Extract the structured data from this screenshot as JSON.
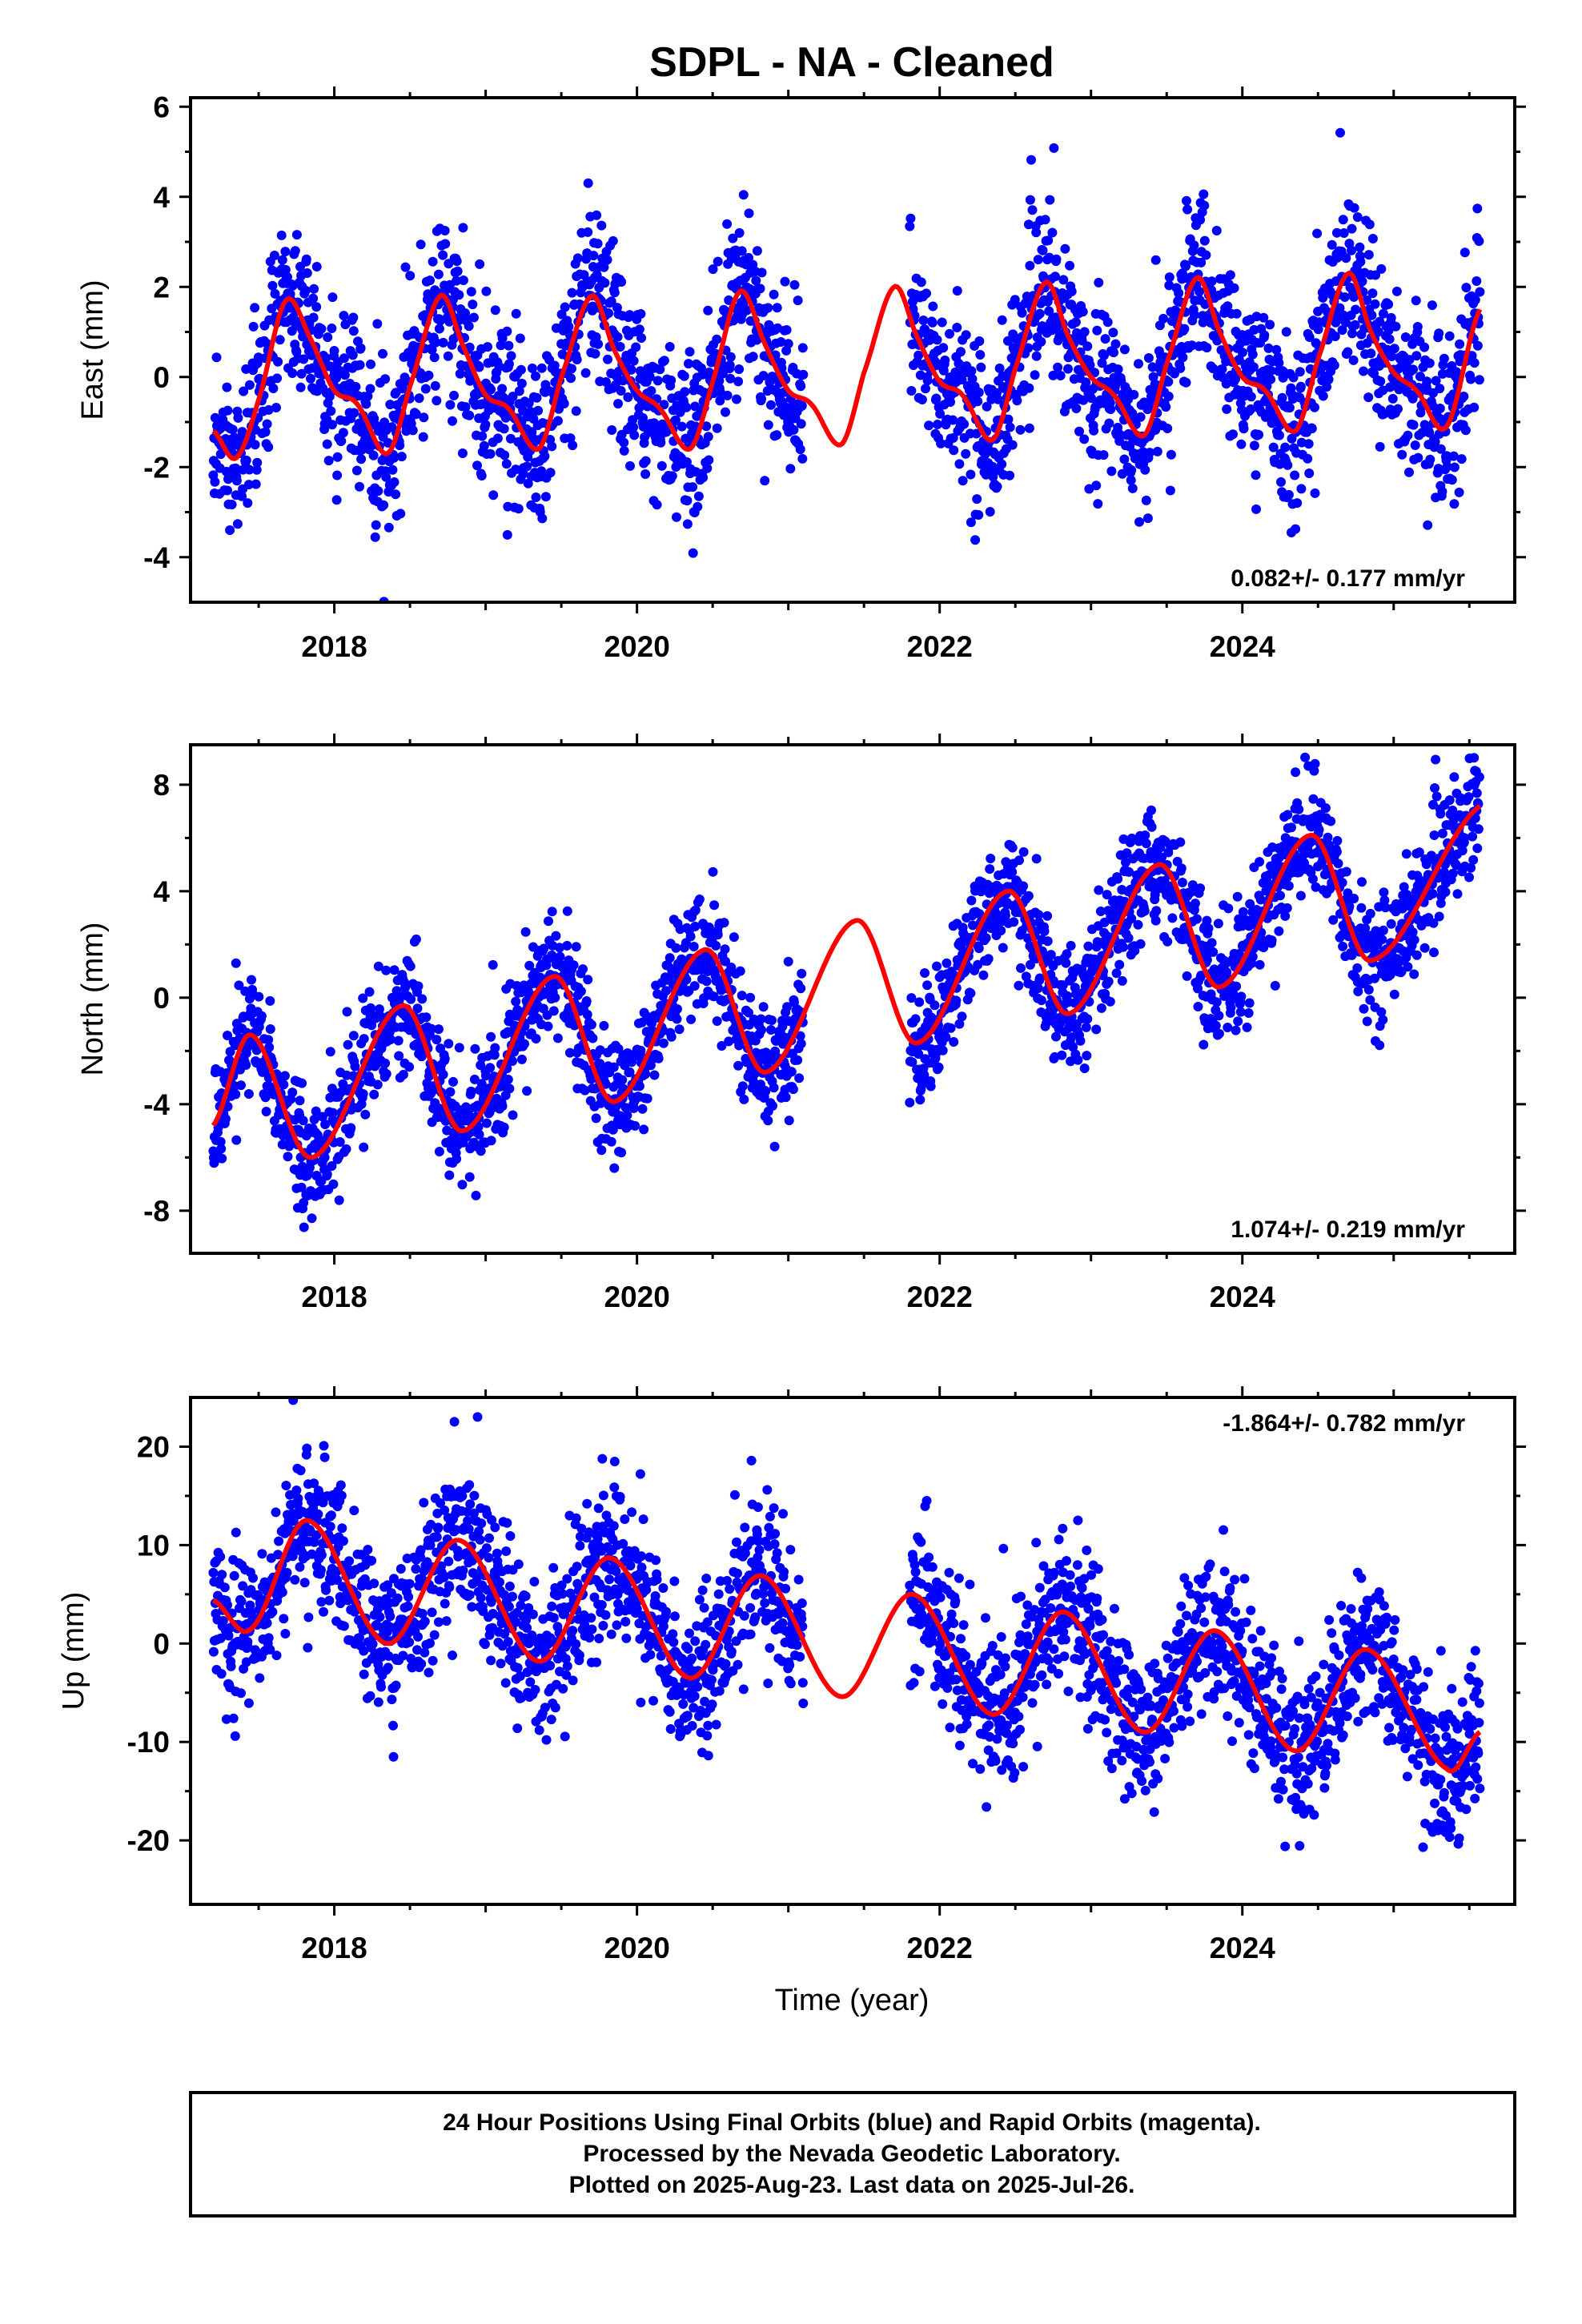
{
  "chart_data": {
    "title": "SDPL  - NA - Cleaned",
    "xlabel": "Time (year)",
    "x_ticks": [
      "2018",
      "2020",
      "2022",
      "2024"
    ],
    "x_range": [
      2017.05,
      2025.8
    ],
    "colors": {
      "points": "#0000ff",
      "fit": "#ff0000"
    },
    "fit_params": {
      "gap_start": 2021.1,
      "gap_end": 2021.8,
      "data_start": 2017.2,
      "data_end": 2025.57
    },
    "panels": [
      {
        "type": "scatter",
        "key": "east",
        "ylabel": "East (mm)",
        "ylim": [
          -5,
          6.2
        ],
        "y_ticks": [
          "6",
          "4",
          "2",
          "0",
          "-2",
          "-4"
        ],
        "y_tick_values": [
          6,
          4,
          2,
          0,
          -2,
          -4
        ],
        "rate_label": "0.082+/- 0.177 mm/yr",
        "rate_position": "bottom-right",
        "model": {
          "offset": 0.0,
          "rate": 0.082,
          "annual_amp": 1.3,
          "annual_peak": 0.7,
          "semi_amp": 0.55,
          "semi_peak": 0.7,
          "noise_sd": 0.9
        },
        "fit_knots": {
          "x": [
            2017.2,
            2017.35,
            2017.5,
            2017.68,
            2017.85,
            2018.0,
            2018.15,
            2018.35,
            2018.5,
            2018.7,
            2018.85,
            2019.0,
            2019.15,
            2019.35,
            2019.5,
            2019.7,
            2019.85,
            2020.0,
            2020.15,
            2020.35,
            2020.5,
            2020.68,
            2020.85,
            2021.0,
            2021.15,
            2021.35,
            2021.5,
            2021.7,
            2021.85,
            2022.0,
            2022.15,
            2022.35,
            2022.5,
            2022.7,
            2022.85,
            2023.0,
            2023.15,
            2023.35,
            2023.5,
            2023.7,
            2023.85,
            2024.0,
            2024.15,
            2024.35,
            2024.5,
            2024.7,
            2024.85,
            2025.0,
            2025.15,
            2025.35,
            2025.57
          ],
          "y": [
            -1.2,
            -1.8,
            -0.5,
            1.7,
            0.8,
            -0.3,
            -0.6,
            -1.7,
            -0.2,
            1.8,
            0.7,
            -0.4,
            -0.7,
            -1.6,
            0.0,
            1.8,
            0.6,
            -0.3,
            -0.7,
            -1.6,
            -0.1,
            1.9,
            0.7,
            -0.3,
            -0.6,
            -1.5,
            0.1,
            2.0,
            0.9,
            -0.1,
            -0.4,
            -1.4,
            0.2,
            2.1,
            0.9,
            0.0,
            -0.4,
            -1.3,
            0.3,
            2.2,
            1.0,
            0.0,
            -0.3,
            -1.2,
            0.4,
            2.3,
            1.0,
            0.1,
            -0.3,
            -1.1,
            1.5
          ]
        }
      },
      {
        "type": "scatter",
        "key": "north",
        "ylabel": "North (mm)",
        "ylim": [
          -9.6,
          9.5
        ],
        "y_ticks": [
          "8",
          "4",
          "0",
          "-4",
          "-8"
        ],
        "y_tick_values": [
          8,
          4,
          0,
          -4,
          -8
        ],
        "rate_label": "1.074+/- 0.219 mm/yr",
        "rate_position": "bottom-right",
        "model": {
          "offset": -1.5,
          "rate": 1.074,
          "annual_amp": 2.5,
          "annual_peak": 0.45,
          "semi_amp": 0.3,
          "semi_peak": 0.45,
          "noise_sd": 1.1
        },
        "fit_knots": {
          "x": [
            2017.2,
            2017.45,
            2017.85,
            2018.45,
            2018.85,
            2019.45,
            2019.85,
            2020.45,
            2020.85,
            2021.45,
            2021.85,
            2022.45,
            2022.85,
            2023.45,
            2023.85,
            2024.45,
            2024.85,
            2025.57
          ],
          "y": [
            -4.8,
            -1.4,
            -6.0,
            -0.3,
            -5.0,
            0.8,
            -3.9,
            1.8,
            -2.8,
            2.9,
            -1.7,
            4.0,
            -0.6,
            5.0,
            0.4,
            6.1,
            1.4,
            7.2
          ]
        }
      },
      {
        "type": "scatter",
        "key": "up",
        "ylabel": "Up (mm)",
        "ylim": [
          -26.5,
          25
        ],
        "y_ticks": [
          "20",
          "10",
          "0",
          "-10",
          "-20"
        ],
        "y_tick_values": [
          20,
          10,
          0,
          -10,
          -20
        ],
        "rate_label": "-1.864+/- 0.782 mm/yr",
        "rate_position": "top-right",
        "model": {
          "offset": 6.0,
          "rate": -1.864,
          "annual_amp": 6.0,
          "annual_peak": 0.82,
          "semi_amp": 0.5,
          "semi_peak": 0.82,
          "noise_sd": 3.8
        },
        "fit_knots": {
          "x": [
            2017.2,
            2017.45,
            2017.82,
            2018.35,
            2018.82,
            2019.35,
            2019.82,
            2020.35,
            2020.82,
            2021.35,
            2021.82,
            2022.35,
            2022.82,
            2023.35,
            2023.82,
            2024.35,
            2024.82,
            2025.35,
            2025.57
          ],
          "y": [
            4.4,
            1.5,
            12.5,
            0.0,
            10.5,
            -1.8,
            8.7,
            -3.5,
            6.9,
            -5.4,
            5.0,
            -7.2,
            3.2,
            -9.0,
            1.3,
            -10.9,
            -0.6,
            -12.7,
            -9.0
          ]
        }
      }
    ]
  },
  "footer": {
    "line1": "24 Hour Positions Using Final Orbits (blue) and Rapid Orbits (magenta).",
    "line2": "Processed by the Nevada Geodetic Laboratory.",
    "line3": "Plotted on 2025-Aug-23. Last data on 2025-Jul-26."
  }
}
